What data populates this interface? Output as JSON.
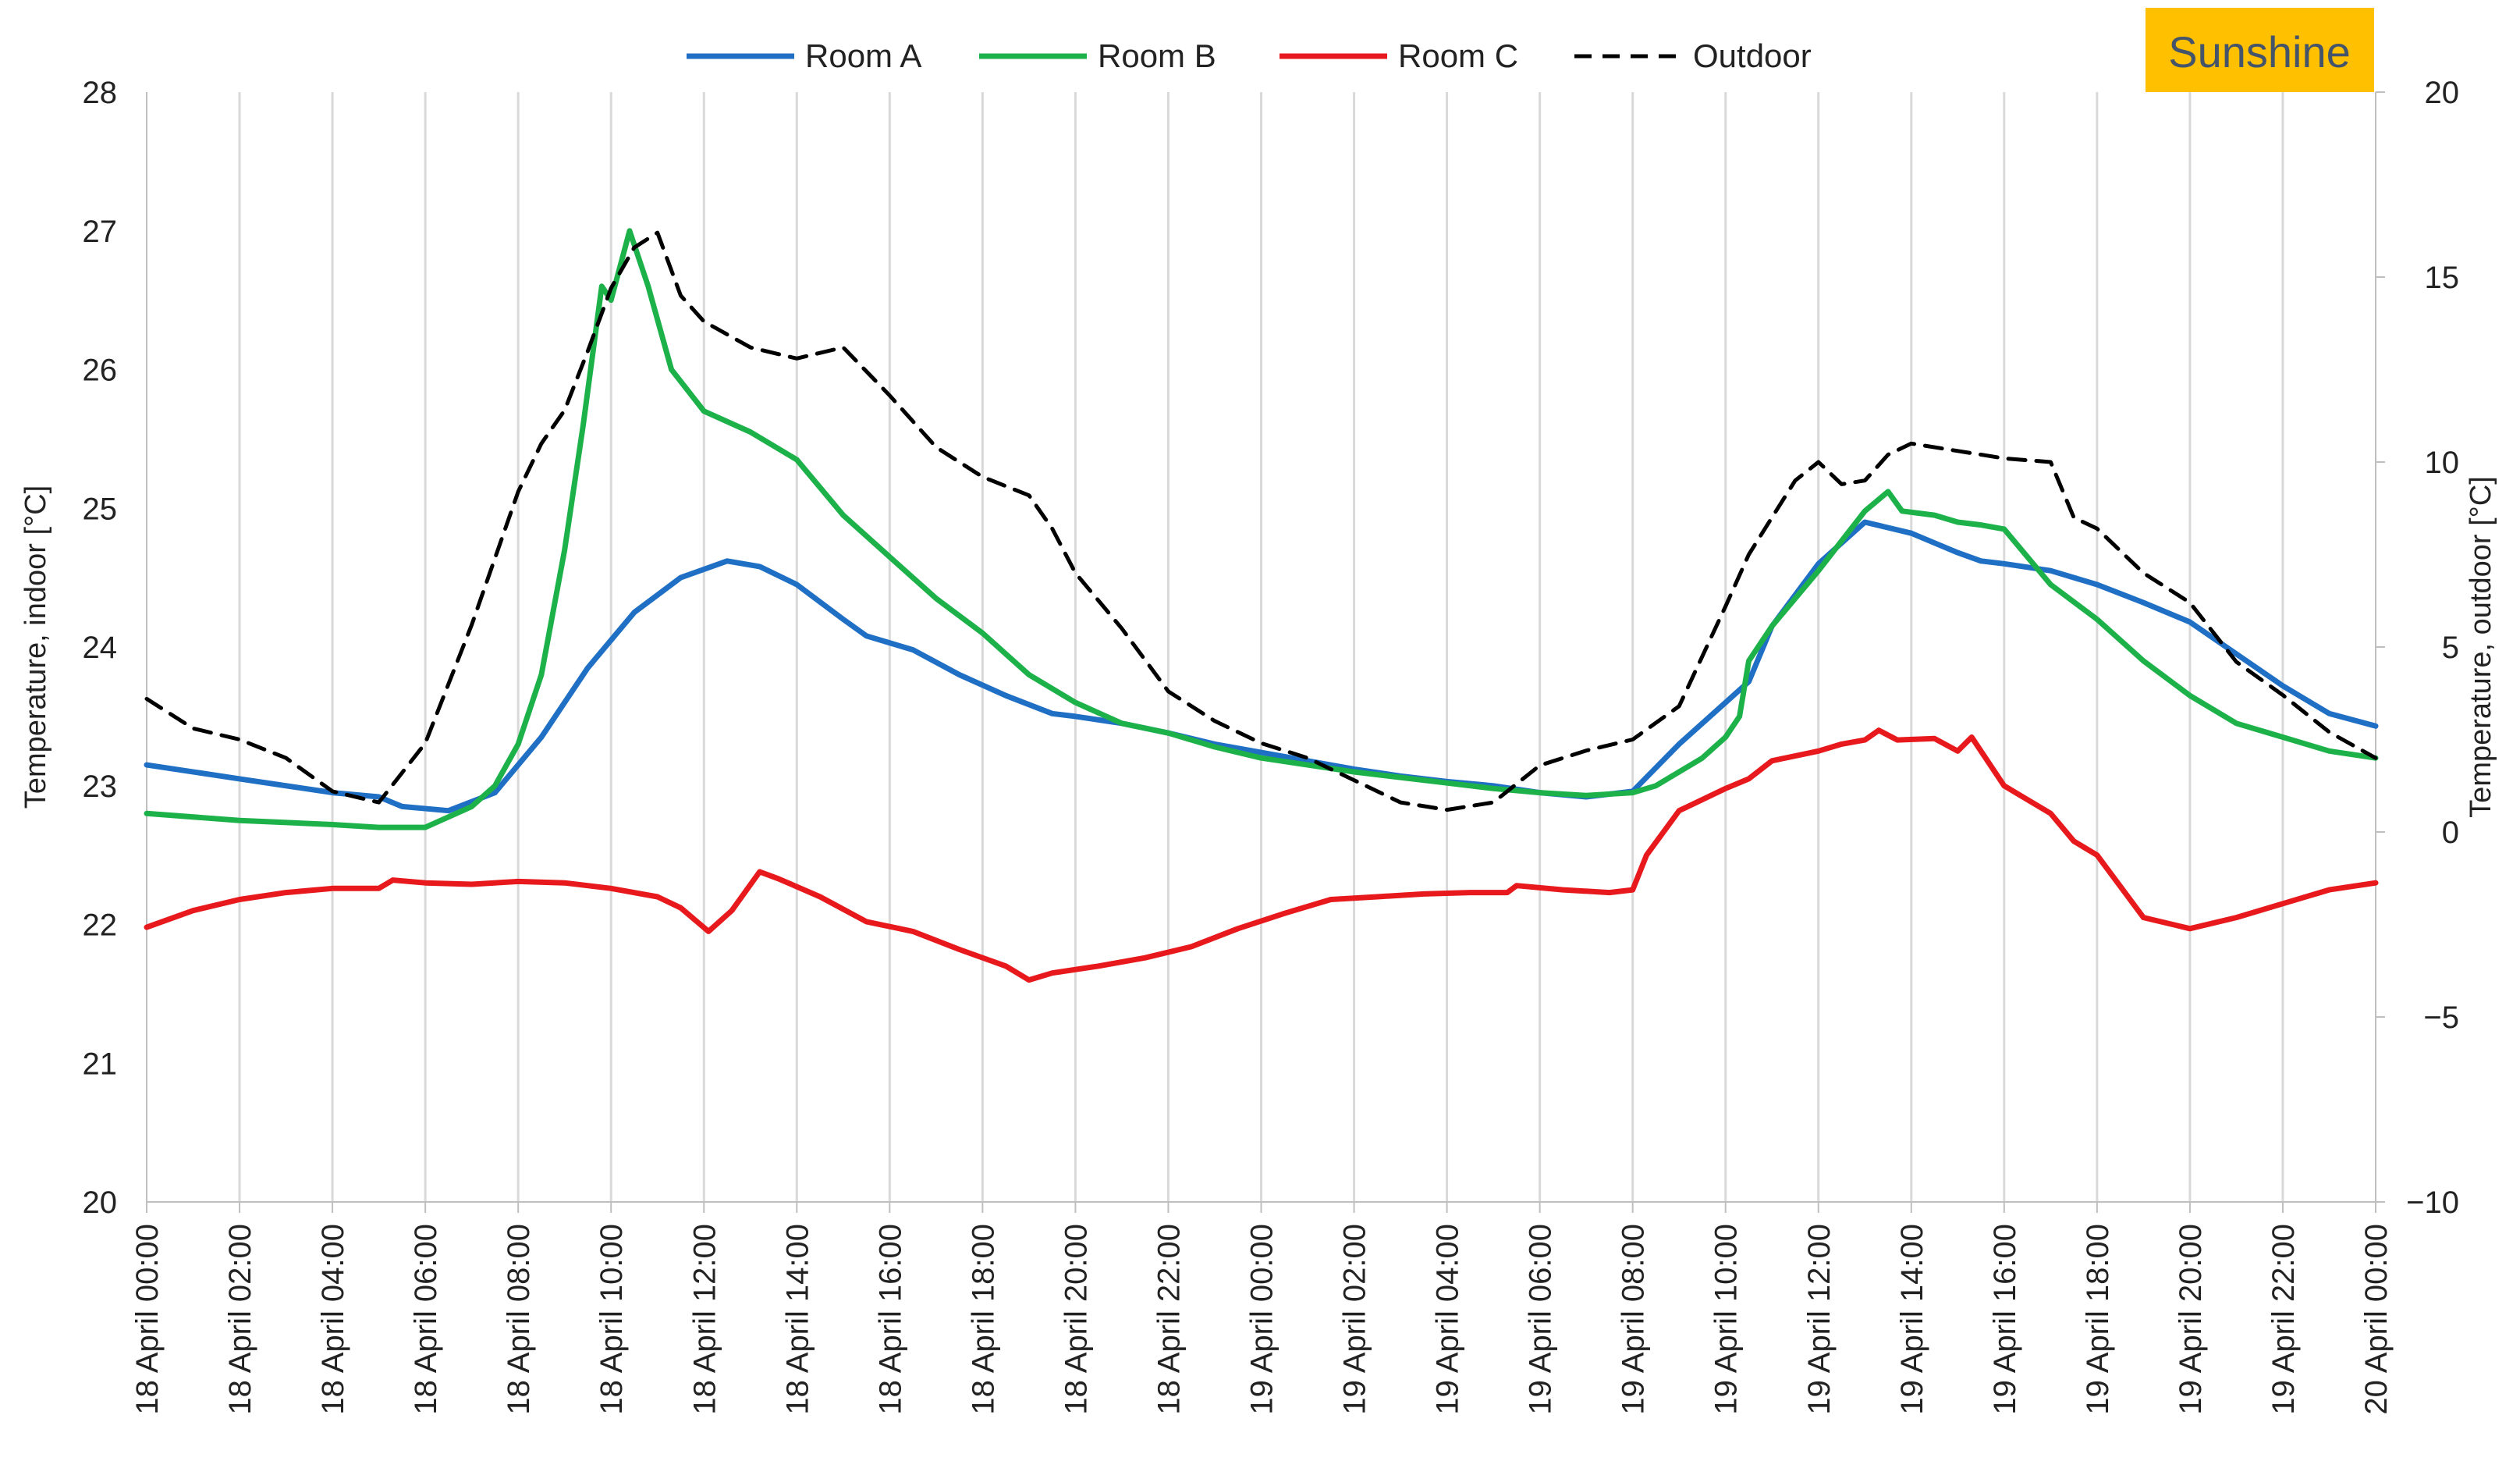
{
  "chart_data": {
    "type": "line",
    "title": "",
    "badge": "Sunshine",
    "ylabel_left": "Temperature, indoor [°C]",
    "ylabel_right": "Temperature, outdoor [°C]",
    "ylim_left": [
      20,
      28
    ],
    "yticks_left": [
      "20",
      "21",
      "22",
      "23",
      "24",
      "25",
      "26",
      "27",
      "28"
    ],
    "ylim_right": [
      -10,
      20
    ],
    "yticks_right": [
      "−10",
      "−5",
      "0",
      "5",
      "10",
      "15",
      "20"
    ],
    "xlim_hours": [
      0,
      48
    ],
    "xtick_labels": [
      "18 April 00:00",
      "18 April 02:00",
      "18 April 04:00",
      "18 April 06:00",
      "18 April 08:00",
      "18 April 10:00",
      "18 April 12:00",
      "18 April 14:00",
      "18 April 16:00",
      "18 April 18:00",
      "18 April 20:00",
      "18 April 22:00",
      "19 April 00:00",
      "19 April 02:00",
      "19 April 04:00",
      "19 April 06:00",
      "19 April 08:00",
      "19 April 10:00",
      "19 April 12:00",
      "19 April 14:00",
      "19 April 16:00",
      "19 April 18:00",
      "19 April 20:00",
      "19 April 22:00",
      "20 April 00:00"
    ],
    "grid": "vertical",
    "legend_position": "top-center",
    "series": [
      {
        "name": "Room A",
        "axis": "left",
        "color": "#1F6FC5",
        "dash": false,
        "points": [
          [
            0,
            23.15
          ],
          [
            2,
            23.05
          ],
          [
            4,
            22.95
          ],
          [
            5,
            22.92
          ],
          [
            5.5,
            22.85
          ],
          [
            6.5,
            22.82
          ],
          [
            7.5,
            22.95
          ],
          [
            8.5,
            23.35
          ],
          [
            9.5,
            23.85
          ],
          [
            10.5,
            24.25
          ],
          [
            11.5,
            24.5
          ],
          [
            12.5,
            24.62
          ],
          [
            13.2,
            24.58
          ],
          [
            14,
            24.45
          ],
          [
            15,
            24.2
          ],
          [
            15.5,
            24.08
          ],
          [
            16.5,
            23.98
          ],
          [
            17.5,
            23.8
          ],
          [
            18.5,
            23.65
          ],
          [
            19.5,
            23.52
          ],
          [
            20,
            23.5
          ],
          [
            21,
            23.45
          ],
          [
            22,
            23.38
          ],
          [
            23,
            23.3
          ],
          [
            24,
            23.24
          ],
          [
            25,
            23.18
          ],
          [
            26,
            23.12
          ],
          [
            27,
            23.07
          ],
          [
            28,
            23.03
          ],
          [
            29,
            23
          ],
          [
            30,
            22.95
          ],
          [
            31,
            22.92
          ],
          [
            32,
            22.96
          ],
          [
            33,
            23.3
          ],
          [
            34,
            23.6
          ],
          [
            34.5,
            23.75
          ],
          [
            35,
            24.15
          ],
          [
            36,
            24.6
          ],
          [
            37,
            24.9
          ],
          [
            38,
            24.82
          ],
          [
            38.5,
            24.75
          ],
          [
            39,
            24.68
          ],
          [
            39.5,
            24.62
          ],
          [
            40,
            24.6
          ],
          [
            41,
            24.55
          ],
          [
            42,
            24.45
          ],
          [
            43,
            24.32
          ],
          [
            44,
            24.18
          ],
          [
            45,
            23.95
          ],
          [
            46,
            23.72
          ],
          [
            47,
            23.52
          ],
          [
            48,
            23.43
          ]
        ]
      },
      {
        "name": "Room B",
        "axis": "left",
        "color": "#1DB14A",
        "dash": false,
        "points": [
          [
            0,
            22.8
          ],
          [
            2,
            22.75
          ],
          [
            4,
            22.72
          ],
          [
            5,
            22.7
          ],
          [
            6,
            22.7
          ],
          [
            7,
            22.85
          ],
          [
            7.5,
            23
          ],
          [
            8,
            23.3
          ],
          [
            8.5,
            23.8
          ],
          [
            9,
            24.7
          ],
          [
            9.4,
            25.6
          ],
          [
            9.8,
            26.6
          ],
          [
            10,
            26.5
          ],
          [
            10.4,
            27
          ],
          [
            10.8,
            26.6
          ],
          [
            11.3,
            26
          ],
          [
            12,
            25.7
          ],
          [
            13,
            25.55
          ],
          [
            14,
            25.35
          ],
          [
            14.5,
            25.15
          ],
          [
            15,
            24.95
          ],
          [
            16,
            24.65
          ],
          [
            17,
            24.35
          ],
          [
            18,
            24.1
          ],
          [
            18.5,
            23.95
          ],
          [
            19,
            23.8
          ],
          [
            20,
            23.6
          ],
          [
            21,
            23.45
          ],
          [
            22,
            23.38
          ],
          [
            23,
            23.28
          ],
          [
            24,
            23.2
          ],
          [
            25,
            23.15
          ],
          [
            26,
            23.1
          ],
          [
            27,
            23.06
          ],
          [
            28,
            23.02
          ],
          [
            29,
            22.98
          ],
          [
            30,
            22.95
          ],
          [
            31,
            22.93
          ],
          [
            32,
            22.95
          ],
          [
            32.5,
            23
          ],
          [
            33,
            23.1
          ],
          [
            33.5,
            23.2
          ],
          [
            34,
            23.35
          ],
          [
            34.3,
            23.5
          ],
          [
            34.5,
            23.9
          ],
          [
            35,
            24.15
          ],
          [
            35.5,
            24.35
          ],
          [
            36,
            24.55
          ],
          [
            37,
            24.98
          ],
          [
            37.5,
            25.12
          ],
          [
            37.8,
            24.98
          ],
          [
            38.5,
            24.95
          ],
          [
            39,
            24.9
          ],
          [
            39.5,
            24.88
          ],
          [
            40,
            24.85
          ],
          [
            40.5,
            24.65
          ],
          [
            41,
            24.45
          ],
          [
            42,
            24.2
          ],
          [
            43,
            23.9
          ],
          [
            44,
            23.65
          ],
          [
            45,
            23.45
          ],
          [
            46,
            23.35
          ],
          [
            47,
            23.25
          ],
          [
            48,
            23.2
          ]
        ]
      },
      {
        "name": "Room C",
        "axis": "left",
        "color": "#E8191C",
        "dash": false,
        "points": [
          [
            0,
            21.98
          ],
          [
            1,
            22.1
          ],
          [
            2,
            22.18
          ],
          [
            3,
            22.23
          ],
          [
            4,
            22.26
          ],
          [
            5,
            22.26
          ],
          [
            5.3,
            22.32
          ],
          [
            6,
            22.3
          ],
          [
            7,
            22.29
          ],
          [
            8,
            22.31
          ],
          [
            9,
            22.3
          ],
          [
            10,
            22.26
          ],
          [
            11,
            22.2
          ],
          [
            11.5,
            22.12
          ],
          [
            12.1,
            21.95
          ],
          [
            12.6,
            22.1
          ],
          [
            13.2,
            22.38
          ],
          [
            13.6,
            22.33
          ],
          [
            14.5,
            22.2
          ],
          [
            15.5,
            22.02
          ],
          [
            16.5,
            21.95
          ],
          [
            17.5,
            21.82
          ],
          [
            18.5,
            21.7
          ],
          [
            19,
            21.6
          ],
          [
            19.5,
            21.65
          ],
          [
            20.5,
            21.7
          ],
          [
            21.5,
            21.76
          ],
          [
            22.5,
            21.84
          ],
          [
            23.5,
            21.97
          ],
          [
            24.5,
            22.08
          ],
          [
            25.5,
            22.18
          ],
          [
            26.5,
            22.2
          ],
          [
            27.5,
            22.22
          ],
          [
            28.5,
            22.23
          ],
          [
            29.3,
            22.23
          ],
          [
            29.5,
            22.28
          ],
          [
            30.5,
            22.25
          ],
          [
            31.5,
            22.23
          ],
          [
            32,
            22.25
          ],
          [
            32.3,
            22.5
          ],
          [
            33,
            22.82
          ],
          [
            34,
            22.98
          ],
          [
            34.5,
            23.05
          ],
          [
            35,
            23.18
          ],
          [
            36,
            23.25
          ],
          [
            36.5,
            23.3
          ],
          [
            37,
            23.33
          ],
          [
            37.3,
            23.4
          ],
          [
            37.7,
            23.33
          ],
          [
            38.5,
            23.34
          ],
          [
            39,
            23.25
          ],
          [
            39.3,
            23.35
          ],
          [
            40,
            23
          ],
          [
            41,
            22.8
          ],
          [
            41.5,
            22.6
          ],
          [
            42,
            22.5
          ],
          [
            43,
            22.05
          ],
          [
            44,
            21.97
          ],
          [
            45,
            22.05
          ],
          [
            46,
            22.15
          ],
          [
            47,
            22.25
          ],
          [
            48,
            22.3
          ]
        ]
      },
      {
        "name": "Outdoor",
        "axis": "right",
        "color": "#000000",
        "dash": true,
        "points": [
          [
            0,
            3.6
          ],
          [
            1,
            2.8
          ],
          [
            2,
            2.5
          ],
          [
            3,
            2
          ],
          [
            4,
            1.1
          ],
          [
            5,
            0.8
          ],
          [
            6,
            2.4
          ],
          [
            7,
            5.6
          ],
          [
            8,
            9.2
          ],
          [
            8.5,
            10.5
          ],
          [
            9,
            11.4
          ],
          [
            9.5,
            13
          ],
          [
            10,
            14.7
          ],
          [
            10.5,
            15.8
          ],
          [
            11,
            16.2
          ],
          [
            11.5,
            14.5
          ],
          [
            12,
            13.8
          ],
          [
            13,
            13.1
          ],
          [
            14,
            12.8
          ],
          [
            15,
            13.1
          ],
          [
            16,
            11.8
          ],
          [
            17,
            10.4
          ],
          [
            18,
            9.6
          ],
          [
            19,
            9.1
          ],
          [
            19.5,
            8.2
          ],
          [
            20,
            7
          ],
          [
            21,
            5.5
          ],
          [
            22,
            3.8
          ],
          [
            23,
            3
          ],
          [
            24,
            2.4
          ],
          [
            25,
            2
          ],
          [
            26,
            1.4
          ],
          [
            27,
            0.8
          ],
          [
            28,
            0.6
          ],
          [
            29,
            0.8
          ],
          [
            30,
            1.8
          ],
          [
            31,
            2.2
          ],
          [
            32,
            2.5
          ],
          [
            33,
            3.4
          ],
          [
            34,
            6.1
          ],
          [
            34.5,
            7.5
          ],
          [
            35,
            8.5
          ],
          [
            35.5,
            9.5
          ],
          [
            36,
            10
          ],
          [
            36.5,
            9.4
          ],
          [
            37,
            9.5
          ],
          [
            37.5,
            10.2
          ],
          [
            38,
            10.5
          ],
          [
            39,
            10.3
          ],
          [
            39.5,
            10.2
          ],
          [
            40,
            10.1
          ],
          [
            41,
            10
          ],
          [
            41.5,
            8.5
          ],
          [
            42,
            8.2
          ],
          [
            43,
            7
          ],
          [
            44,
            6.2
          ],
          [
            45,
            4.6
          ],
          [
            46,
            3.7
          ],
          [
            47,
            2.7
          ],
          [
            48,
            2
          ]
        ]
      }
    ]
  }
}
